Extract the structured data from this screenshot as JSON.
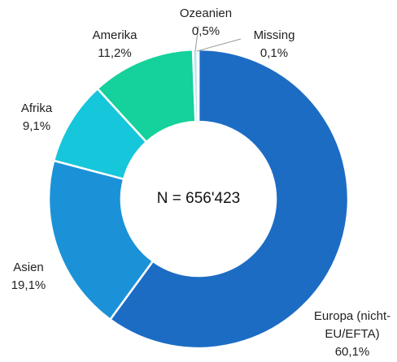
{
  "chart_data": {
    "type": "donut",
    "categories": [
      "Europa (nicht-EU/EFTA)",
      "Asien",
      "Afrika",
      "Amerika",
      "Ozeanien",
      "Missing"
    ],
    "values": [
      60.1,
      19.1,
      9.1,
      11.2,
      0.5,
      0.1
    ],
    "value_labels": [
      "60,1%",
      "19,1%",
      "9,1%",
      "11,2%",
      "0,5%",
      "0,1%"
    ],
    "colors": [
      "#1c6cc4",
      "#1b92d8",
      "#16c6db",
      "#15d19b",
      "#b9e3f2",
      "#d6dce4"
    ],
    "center_label": "N = 656'423"
  }
}
